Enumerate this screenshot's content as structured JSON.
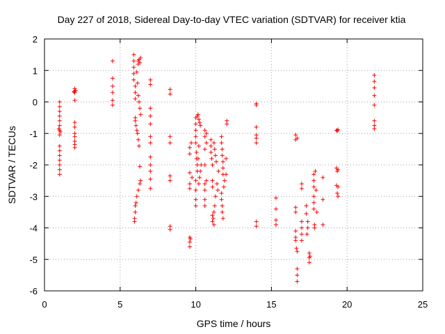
{
  "chart_data": {
    "type": "scatter",
    "title": "Day 227 of 2018, Sidereal Day-to-day VTEC variation (SDTVAR) for receiver ktia",
    "xlabel": "GPS time / hours",
    "ylabel": "SDTVAR / TECUs",
    "xlim": [
      0,
      25
    ],
    "ylim": [
      -6,
      2
    ],
    "xticks": [
      0,
      5,
      10,
      15,
      20,
      25
    ],
    "yticks": [
      -6,
      -5,
      -4,
      -3,
      -2,
      -1,
      0,
      1,
      2
    ],
    "grid": true,
    "marker": "+",
    "color": "#ff0000",
    "series": [
      {
        "name": "SDTVAR",
        "points": [
          [
            1.0,
            0.0
          ],
          [
            1.0,
            -0.15
          ],
          [
            1.0,
            -0.3
          ],
          [
            1.0,
            -0.45
          ],
          [
            1.0,
            -0.6
          ],
          [
            1.0,
            -0.75
          ],
          [
            1.0,
            -0.9
          ],
          [
            1.0,
            -1.05
          ],
          [
            1.0,
            -1.4
          ],
          [
            1.0,
            -1.55
          ],
          [
            1.0,
            -1.7
          ],
          [
            1.0,
            -1.85
          ],
          [
            1.0,
            -2.0
          ],
          [
            1.0,
            -2.15
          ],
          [
            1.0,
            -2.3
          ],
          [
            0.95,
            -0.85
          ],
          [
            1.05,
            -0.95
          ],
          [
            2.0,
            0.42
          ],
          [
            2.0,
            0.35
          ],
          [
            2.0,
            0.3
          ],
          [
            2.0,
            0.05
          ],
          [
            2.0,
            -0.65
          ],
          [
            2.0,
            -0.8
          ],
          [
            2.0,
            -1.0
          ],
          [
            2.0,
            -1.1
          ],
          [
            2.0,
            -1.25
          ],
          [
            2.0,
            -1.35
          ],
          [
            2.0,
            -1.45
          ],
          [
            1.95,
            0.32
          ],
          [
            2.05,
            0.36
          ],
          [
            4.5,
            1.3
          ],
          [
            4.5,
            0.75
          ],
          [
            4.5,
            0.5
          ],
          [
            4.5,
            0.3
          ],
          [
            4.5,
            0.05
          ],
          [
            4.5,
            -0.1
          ],
          [
            5.9,
            1.5
          ],
          [
            5.9,
            1.3
          ],
          [
            5.9,
            1.1
          ],
          [
            5.9,
            0.9
          ],
          [
            5.9,
            0.7
          ],
          [
            6.0,
            0.5
          ],
          [
            6.0,
            0.3
          ],
          [
            6.0,
            0.1
          ],
          [
            6.0,
            -0.5
          ],
          [
            6.0,
            -0.6
          ],
          [
            6.05,
            -0.75
          ],
          [
            6.1,
            -0.9
          ],
          [
            6.15,
            -1.0
          ],
          [
            6.2,
            -1.2
          ],
          [
            6.25,
            -1.4
          ],
          [
            5.95,
            -3.7
          ],
          [
            5.95,
            -3.8
          ],
          [
            6.0,
            -3.5
          ],
          [
            6.0,
            -3.3
          ],
          [
            6.05,
            -3.2
          ],
          [
            6.1,
            -3.0
          ],
          [
            6.2,
            -2.8
          ],
          [
            6.3,
            -2.6
          ],
          [
            6.35,
            -2.5
          ],
          [
            6.3,
            -2.05
          ],
          [
            6.2,
            1.3
          ],
          [
            6.25,
            1.35
          ],
          [
            6.3,
            1.25
          ],
          [
            6.35,
            1.4
          ],
          [
            6.2,
            1.2
          ],
          [
            6.1,
            0.95
          ],
          [
            6.15,
            0.6
          ],
          [
            6.2,
            0.2
          ],
          [
            6.25,
            0.0
          ],
          [
            6.3,
            -0.2
          ],
          [
            6.35,
            -0.4
          ],
          [
            7.0,
            0.7
          ],
          [
            7.0,
            0.55
          ],
          [
            7.0,
            -0.2
          ],
          [
            7.0,
            -0.45
          ],
          [
            7.0,
            -0.7
          ],
          [
            7.0,
            -1.1
          ],
          [
            7.0,
            -1.3
          ],
          [
            7.0,
            -1.75
          ],
          [
            7.0,
            -2.0
          ],
          [
            7.0,
            -2.2
          ],
          [
            7.0,
            -2.45
          ],
          [
            7.0,
            -2.75
          ],
          [
            8.3,
            0.4
          ],
          [
            8.3,
            0.25
          ],
          [
            8.3,
            -1.1
          ],
          [
            8.3,
            -1.3
          ],
          [
            8.3,
            -2.35
          ],
          [
            8.3,
            -2.5
          ],
          [
            8.3,
            -3.95
          ],
          [
            8.3,
            -4.05
          ],
          [
            9.6,
            -1.45
          ],
          [
            9.6,
            -1.65
          ],
          [
            9.6,
            -2.25
          ],
          [
            9.6,
            -2.6
          ],
          [
            9.6,
            -2.75
          ],
          [
            9.6,
            -4.3
          ],
          [
            9.6,
            -4.45
          ],
          [
            9.6,
            -4.6
          ],
          [
            9.7,
            -1.3
          ],
          [
            9.75,
            -2.4
          ],
          [
            9.65,
            -4.35
          ],
          [
            10.0,
            -0.5
          ],
          [
            10.0,
            -0.7
          ],
          [
            10.0,
            -0.9
          ],
          [
            10.0,
            -1.1
          ],
          [
            10.0,
            -1.3
          ],
          [
            10.05,
            -1.6
          ],
          [
            10.05,
            -1.8
          ],
          [
            10.1,
            -2.0
          ],
          [
            10.1,
            -2.2
          ],
          [
            10.0,
            -2.5
          ],
          [
            10.0,
            -2.8
          ],
          [
            10.0,
            -3.1
          ],
          [
            10.0,
            -3.3
          ],
          [
            10.1,
            -0.45
          ],
          [
            10.15,
            -0.4
          ],
          [
            10.2,
            -0.55
          ],
          [
            10.25,
            -0.65
          ],
          [
            10.3,
            -0.75
          ],
          [
            10.15,
            -1.8
          ],
          [
            10.2,
            -2.6
          ],
          [
            10.25,
            -2.4
          ],
          [
            10.3,
            -2.2
          ],
          [
            10.35,
            -2.0
          ],
          [
            10.2,
            -1.4
          ],
          [
            10.6,
            -0.9
          ],
          [
            10.6,
            -1.1
          ],
          [
            10.6,
            -1.5
          ],
          [
            10.6,
            -2.0
          ],
          [
            10.6,
            -2.6
          ],
          [
            10.6,
            -2.8
          ],
          [
            10.6,
            -3.1
          ],
          [
            10.6,
            -3.3
          ],
          [
            10.7,
            -1.0
          ],
          [
            10.7,
            -1.3
          ],
          [
            10.7,
            -2.5
          ],
          [
            11.0,
            -1.2
          ],
          [
            11.0,
            -1.4
          ],
          [
            11.0,
            -1.6
          ],
          [
            11.05,
            -1.8
          ],
          [
            11.1,
            -2.0
          ],
          [
            11.1,
            -2.5
          ],
          [
            11.1,
            -2.7
          ],
          [
            11.1,
            -3.6
          ],
          [
            11.1,
            -3.8
          ],
          [
            11.15,
            -3.7
          ],
          [
            11.2,
            -3.9
          ],
          [
            11.2,
            -3.5
          ],
          [
            11.25,
            -3.3
          ],
          [
            11.3,
            -3.0
          ],
          [
            11.2,
            -1.3
          ],
          [
            11.25,
            -1.5
          ],
          [
            11.3,
            -1.7
          ],
          [
            11.35,
            -1.9
          ],
          [
            11.4,
            -2.6
          ],
          [
            11.45,
            -2.8
          ],
          [
            11.5,
            -2.2
          ],
          [
            11.7,
            -1.1
          ],
          [
            11.7,
            -1.3
          ],
          [
            11.75,
            -1.5
          ],
          [
            11.75,
            -1.7
          ],
          [
            11.8,
            -1.9
          ],
          [
            11.8,
            -2.1
          ],
          [
            11.8,
            -2.3
          ],
          [
            11.7,
            -2.9
          ],
          [
            11.7,
            -3.1
          ],
          [
            11.75,
            -3.3
          ],
          [
            11.75,
            -3.5
          ],
          [
            11.8,
            -3.7
          ],
          [
            11.85,
            -2.7
          ],
          [
            11.9,
            -2.5
          ],
          [
            12.0,
            -1.8
          ],
          [
            12.0,
            -2.3
          ],
          [
            12.05,
            -0.6
          ],
          [
            12.05,
            -0.7
          ],
          [
            14.0,
            -0.05
          ],
          [
            14.0,
            -0.1
          ],
          [
            14.0,
            -0.8
          ],
          [
            14.0,
            -1.05
          ],
          [
            14.0,
            -1.15
          ],
          [
            14.0,
            -1.3
          ],
          [
            14.0,
            -3.8
          ],
          [
            14.0,
            -3.95
          ],
          [
            15.3,
            -3.05
          ],
          [
            15.3,
            -3.4
          ],
          [
            15.3,
            -3.75
          ],
          [
            15.3,
            -3.9
          ],
          [
            16.6,
            -1.05
          ],
          [
            16.6,
            -1.2
          ],
          [
            16.7,
            -1.15
          ],
          [
            16.6,
            -3.35
          ],
          [
            16.6,
            -3.5
          ],
          [
            16.6,
            -4.1
          ],
          [
            16.6,
            -4.3
          ],
          [
            16.6,
            -4.4
          ],
          [
            16.65,
            -4.65
          ],
          [
            16.7,
            -4.75
          ],
          [
            16.7,
            -5.3
          ],
          [
            16.7,
            -5.5
          ],
          [
            16.7,
            -5.7
          ],
          [
            17.0,
            -2.6
          ],
          [
            17.0,
            -2.75
          ],
          [
            17.0,
            -3.8
          ],
          [
            17.0,
            -4.0
          ],
          [
            17.0,
            -4.2
          ],
          [
            17.0,
            -4.4
          ],
          [
            17.3,
            -3.3
          ],
          [
            17.3,
            -3.55
          ],
          [
            17.4,
            -3.8
          ],
          [
            17.4,
            -4.0
          ],
          [
            17.35,
            -4.2
          ],
          [
            17.5,
            -4.8
          ],
          [
            17.5,
            -4.95
          ],
          [
            17.5,
            -5.1
          ],
          [
            17.55,
            -4.9
          ],
          [
            17.8,
            -2.3
          ],
          [
            17.8,
            -2.5
          ],
          [
            17.8,
            -2.7
          ],
          [
            17.8,
            -3.0
          ],
          [
            17.8,
            -3.2
          ],
          [
            17.8,
            -3.4
          ],
          [
            17.85,
            -3.9
          ],
          [
            17.85,
            -4.0
          ],
          [
            17.9,
            -2.2
          ],
          [
            17.95,
            -2.8
          ],
          [
            18.0,
            -3.5
          ],
          [
            18.4,
            -2.4
          ],
          [
            18.4,
            -3.1
          ],
          [
            18.4,
            -3.9
          ],
          [
            19.3,
            -0.9
          ],
          [
            19.4,
            -0.88
          ],
          [
            19.35,
            -0.92
          ],
          [
            19.3,
            -2.1
          ],
          [
            19.35,
            -2.2
          ],
          [
            19.4,
            -2.15
          ],
          [
            19.3,
            -2.65
          ],
          [
            19.35,
            -2.9
          ],
          [
            19.4,
            -3.0
          ],
          [
            19.4,
            -2.7
          ],
          [
            21.8,
            0.85
          ],
          [
            21.8,
            0.65
          ],
          [
            21.8,
            0.45
          ],
          [
            21.8,
            0.2
          ],
          [
            21.8,
            -0.1
          ],
          [
            21.8,
            -0.6
          ],
          [
            21.8,
            -0.75
          ],
          [
            21.8,
            -0.85
          ]
        ]
      }
    ]
  }
}
